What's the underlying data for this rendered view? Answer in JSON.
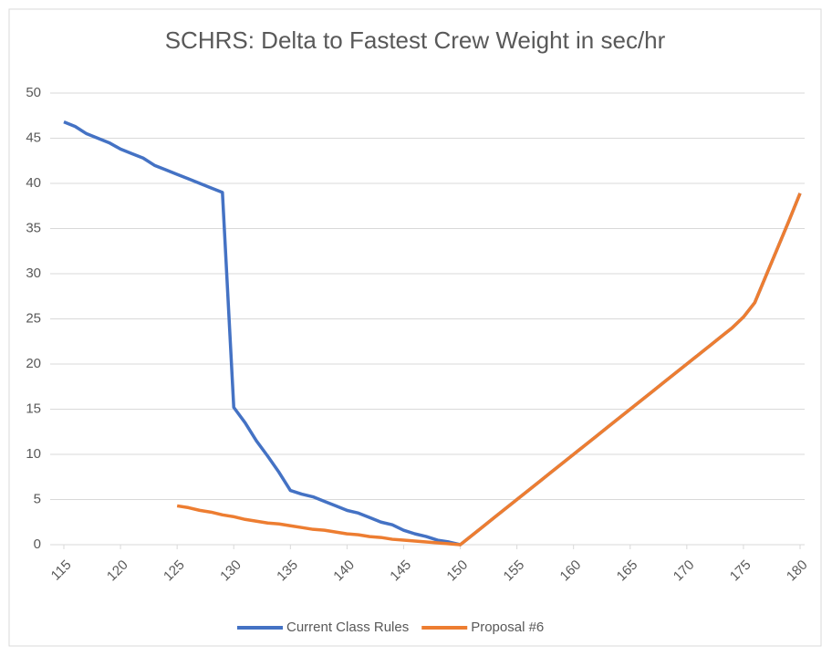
{
  "chart_data": {
    "type": "line",
    "title": "SCHRS: Delta to Fastest Crew Weight in sec/hr",
    "x": [
      115,
      116,
      117,
      118,
      119,
      120,
      121,
      122,
      123,
      124,
      125,
      126,
      127,
      128,
      129,
      130,
      131,
      132,
      133,
      134,
      135,
      136,
      137,
      138,
      139,
      140,
      141,
      142,
      143,
      144,
      145,
      146,
      147,
      148,
      149,
      150,
      151,
      152,
      153,
      154,
      155,
      156,
      157,
      158,
      159,
      160,
      161,
      162,
      163,
      164,
      165,
      166,
      167,
      168,
      169,
      170,
      171,
      172,
      173,
      174,
      175,
      176,
      177,
      178,
      179,
      180
    ],
    "series": [
      {
        "name": "Current Class Rules",
        "color": "#4472c4",
        "values": [
          46.8,
          46.3,
          45.5,
          45.0,
          44.5,
          43.8,
          43.3,
          42.8,
          42.0,
          41.5,
          41.0,
          40.5,
          40.0,
          39.5,
          39.0,
          15.2,
          13.5,
          11.5,
          9.8,
          8.0,
          6.0,
          5.6,
          5.3,
          4.8,
          4.3,
          3.8,
          3.5,
          3.0,
          2.5,
          2.2,
          1.6,
          1.2,
          0.9,
          0.5,
          0.3,
          0,
          1,
          2,
          3,
          4,
          5,
          6,
          7,
          8,
          9,
          10,
          11,
          12,
          13,
          14,
          15,
          16,
          17,
          18,
          19,
          20,
          21,
          22,
          23,
          24,
          25.2,
          26.8,
          29.8,
          32.8,
          35.8,
          38.9
        ]
      },
      {
        "name": "Proposal #6",
        "color": "#ed7d31",
        "values": [
          null,
          null,
          null,
          null,
          null,
          null,
          null,
          null,
          null,
          null,
          4.3,
          4.1,
          3.8,
          3.6,
          3.3,
          3.1,
          2.8,
          2.6,
          2.4,
          2.3,
          2.1,
          1.9,
          1.7,
          1.6,
          1.4,
          1.2,
          1.1,
          0.9,
          0.8,
          0.6,
          0.5,
          0.4,
          0.3,
          0.2,
          0.1,
          0,
          1,
          2,
          3,
          4,
          5,
          6,
          7,
          8,
          9,
          10,
          11,
          12,
          13,
          14,
          15,
          16,
          17,
          18,
          19,
          20,
          21,
          22,
          23,
          24,
          25.2,
          26.8,
          29.8,
          32.8,
          35.8,
          38.9
        ]
      }
    ],
    "xlim": [
      115,
      180
    ],
    "xticks": [
      115,
      120,
      125,
      130,
      135,
      140,
      145,
      150,
      155,
      160,
      165,
      170,
      175,
      180
    ],
    "ylim": [
      0,
      50
    ],
    "yticks": [
      0,
      5,
      10,
      15,
      20,
      25,
      30,
      35,
      40,
      45,
      50
    ],
    "grid": true,
    "legend": "bottom"
  }
}
